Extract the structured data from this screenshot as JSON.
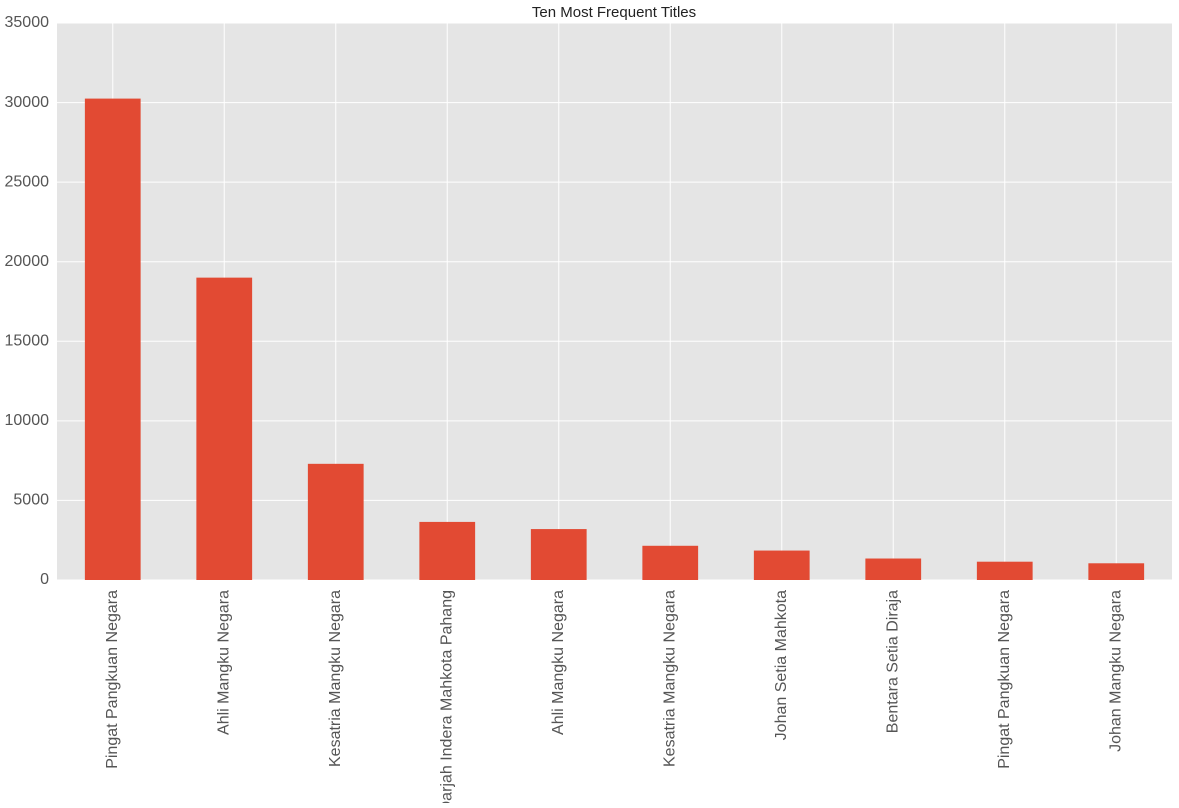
{
  "chart_data": {
    "type": "bar",
    "title": "Ten Most Frequent Titles",
    "categories": [
      "Pingat Pangkuan Negara",
      "Ahli Mangku Negara",
      "Kesatria Mangku Negara",
      "Darjah Indera Mahkota Pahang",
      "Ahli Mangku Negara",
      "Kesatria Mangku Negara",
      "Johan Setia Mahkota",
      "Bentara Setia Diraja",
      "Pingat Pangkuan Negara",
      "Johan Mangku Negara"
    ],
    "values": [
      30250,
      19000,
      7300,
      3650,
      3200,
      2150,
      1850,
      1350,
      1150,
      1050
    ],
    "color": "#e24a33",
    "ylim": [
      0,
      35000
    ],
    "yticks": [
      0,
      5000,
      10000,
      15000,
      20000,
      25000,
      30000,
      35000
    ],
    "grid": true
  }
}
